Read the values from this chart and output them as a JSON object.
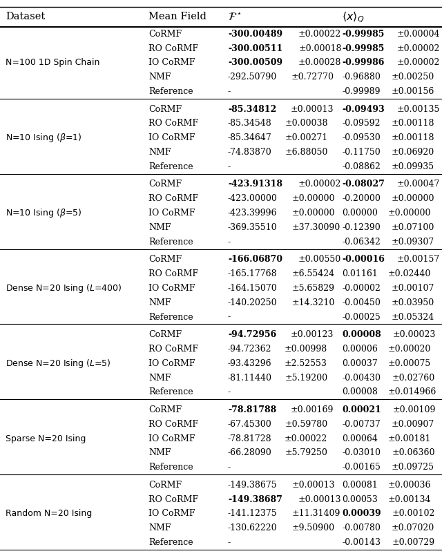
{
  "groups": [
    {
      "dataset": "N=100 1D Spin Chain",
      "dataset_math": false,
      "rows": [
        {
          "method": "CoRMF",
          "F": "-300.00489",
          "Ferr": "±0.00022",
          "x": "-0.99985",
          "xerr": "±0.00004",
          "F_bold": true,
          "x_bold": true
        },
        {
          "method": "RO CoRMF",
          "F": "-300.00511",
          "Ferr": "±0.00018",
          "x": "-0.99985",
          "xerr": "±0.00002",
          "F_bold": true,
          "x_bold": true
        },
        {
          "method": "IO CoRMF",
          "F": "-300.00509",
          "Ferr": "±0.00028",
          "x": "-0.99986",
          "xerr": "±0.00002",
          "F_bold": true,
          "x_bold": true
        },
        {
          "method": "NMF",
          "F": "-292.50790",
          "Ferr": "±0.72770",
          "x": "-0.96880",
          "xerr": "±0.00250",
          "F_bold": false,
          "x_bold": false
        },
        {
          "method": "Reference",
          "F": "-",
          "Ferr": "",
          "x": "-0.99989",
          "xerr": "±0.00156",
          "F_bold": false,
          "x_bold": false
        }
      ]
    },
    {
      "dataset": "N=10 Ising ($\\beta$=1)",
      "dataset_math": true,
      "rows": [
        {
          "method": "CoRMF",
          "F": "-85.34812",
          "Ferr": "±0.00013",
          "x": "-0.09493",
          "xerr": "±0.00135",
          "F_bold": true,
          "x_bold": true
        },
        {
          "method": "RO CoRMF",
          "F": "-85.34548",
          "Ferr": "±0.00038",
          "x": "-0.09592",
          "xerr": "±0.00118",
          "F_bold": false,
          "x_bold": false
        },
        {
          "method": "IO CoRMF",
          "F": "-85.34647",
          "Ferr": "±0.00271",
          "x": "-0.09530",
          "xerr": "±0.00118",
          "F_bold": false,
          "x_bold": false
        },
        {
          "method": "NMF",
          "F": "-74.83870",
          "Ferr": "±6.88050",
          "x": "-0.11750",
          "xerr": "±0.06920",
          "F_bold": false,
          "x_bold": false
        },
        {
          "method": "Reference",
          "F": "-",
          "Ferr": "",
          "x": "-0.08862",
          "xerr": "±0.09935",
          "F_bold": false,
          "x_bold": false
        }
      ]
    },
    {
      "dataset": "N=10 Ising ($\\beta$=5)",
      "dataset_math": true,
      "rows": [
        {
          "method": "CoRMF",
          "F": "-423.91318",
          "Ferr": "±0.00002",
          "x": "-0.08027",
          "xerr": "±0.00047",
          "F_bold": true,
          "x_bold": true
        },
        {
          "method": "RO CoRMF",
          "F": "-423.00000",
          "Ferr": "±0.00000",
          "x": "-0.20000",
          "xerr": "±0.00000",
          "F_bold": false,
          "x_bold": false
        },
        {
          "method": "IO CoRMF",
          "F": "-423.39996",
          "Ferr": "±0.00000",
          "x": "0.00000",
          "xerr": "±0.00000",
          "F_bold": false,
          "x_bold": false
        },
        {
          "method": "NMF",
          "F": "-369.35510",
          "Ferr": "±37.30090",
          "x": "-0.12390",
          "xerr": "±0.07100",
          "F_bold": false,
          "x_bold": false
        },
        {
          "method": "Reference",
          "F": "-",
          "Ferr": "",
          "x": "-0.06342",
          "xerr": "±0.09307",
          "F_bold": false,
          "x_bold": false
        }
      ]
    },
    {
      "dataset": "Dense N=20 Ising ($L$=400)",
      "dataset_math": true,
      "rows": [
        {
          "method": "CoRMF",
          "F": "-166.06870",
          "Ferr": "±0.00550",
          "x": "-0.00016",
          "xerr": "±0.00157",
          "F_bold": true,
          "x_bold": true
        },
        {
          "method": "RO CoRMF",
          "F": "-165.17768",
          "Ferr": "±6.55424",
          "x": "0.01161",
          "xerr": "±0.02440",
          "F_bold": false,
          "x_bold": false
        },
        {
          "method": "IO CoRMF",
          "F": "-164.15070",
          "Ferr": "±5.65829",
          "x": "-0.00002",
          "xerr": "±0.00107",
          "F_bold": false,
          "x_bold": false
        },
        {
          "method": "NMF",
          "F": "-140.20250",
          "Ferr": "±14.3210",
          "x": "-0.00450",
          "xerr": "±0.03950",
          "F_bold": false,
          "x_bold": false
        },
        {
          "method": "Reference",
          "F": "-",
          "Ferr": "",
          "x": "-0.00025",
          "xerr": "±0.05324",
          "F_bold": false,
          "x_bold": false
        }
      ]
    },
    {
      "dataset": "Dense N=20 Ising ($L$=5)",
      "dataset_math": true,
      "rows": [
        {
          "method": "CoRMF",
          "F": "-94.72956",
          "Ferr": "±0.00123",
          "x": "0.00008",
          "xerr": "±0.00023",
          "F_bold": true,
          "x_bold": true
        },
        {
          "method": "RO CoRMF",
          "F": "-94.72362",
          "Ferr": "±0.00998",
          "x": "0.00006",
          "xerr": "±0.00020",
          "F_bold": false,
          "x_bold": false
        },
        {
          "method": "IO CoRMF",
          "F": "-93.43296",
          "Ferr": "±2.52553",
          "x": "0.00037",
          "xerr": "±0.00075",
          "F_bold": false,
          "x_bold": false
        },
        {
          "method": "NMF",
          "F": "-81.11440",
          "Ferr": "±5.19200",
          "x": "-0.00430",
          "xerr": "±0.02760",
          "F_bold": false,
          "x_bold": false
        },
        {
          "method": "Reference",
          "F": "-",
          "Ferr": "",
          "x": "0.00008",
          "xerr": "±0.014966",
          "F_bold": false,
          "x_bold": false
        }
      ]
    },
    {
      "dataset": "Sparse N=20 Ising",
      "dataset_math": false,
      "rows": [
        {
          "method": "CoRMF",
          "F": "-78.81788",
          "Ferr": "±0.00169",
          "x": "0.00021",
          "xerr": "±0.00109",
          "F_bold": true,
          "x_bold": true
        },
        {
          "method": "RO CoRMF",
          "F": "-67.45300",
          "Ferr": "±0.59780",
          "x": "-0.00737",
          "xerr": "±0.00907",
          "F_bold": false,
          "x_bold": false
        },
        {
          "method": "IO CoRMF",
          "F": "-78.81728",
          "Ferr": "±0.00022",
          "x": "0.00064",
          "xerr": "±0.00181",
          "F_bold": false,
          "x_bold": false
        },
        {
          "method": "NMF",
          "F": "-66.28090",
          "Ferr": "±5.79250",
          "x": "-0.03010",
          "xerr": "±0.06360",
          "F_bold": false,
          "x_bold": false
        },
        {
          "method": "Reference",
          "F": "-",
          "Ferr": "",
          "x": "-0.00165",
          "xerr": "±0.09725",
          "F_bold": false,
          "x_bold": false
        }
      ]
    },
    {
      "dataset": "Random N=20 Ising",
      "dataset_math": false,
      "rows": [
        {
          "method": "CoRMF",
          "F": "-149.38675",
          "Ferr": "±0.00013",
          "x": "0.00081",
          "xerr": "±0.00036",
          "F_bold": false,
          "x_bold": false
        },
        {
          "method": "RO CoRMF",
          "F": "-149.38687",
          "Ferr": "±0.00013",
          "x": "0.00053",
          "xerr": "±0.00134",
          "F_bold": true,
          "x_bold": false
        },
        {
          "method": "IO CoRMF",
          "F": "-141.12375",
          "Ferr": "±11.31409",
          "x": "0.00039",
          "xerr": "±0.00102",
          "F_bold": false,
          "x_bold": true
        },
        {
          "method": "NMF",
          "F": "-130.62220",
          "Ferr": "±9.50900",
          "x": "-0.00780",
          "xerr": "±0.07020",
          "F_bold": false,
          "x_bold": false
        },
        {
          "method": "Reference",
          "F": "-",
          "Ferr": "",
          "x": "-0.00143",
          "xerr": "±0.00729",
          "F_bold": false,
          "x_bold": false
        }
      ]
    }
  ]
}
